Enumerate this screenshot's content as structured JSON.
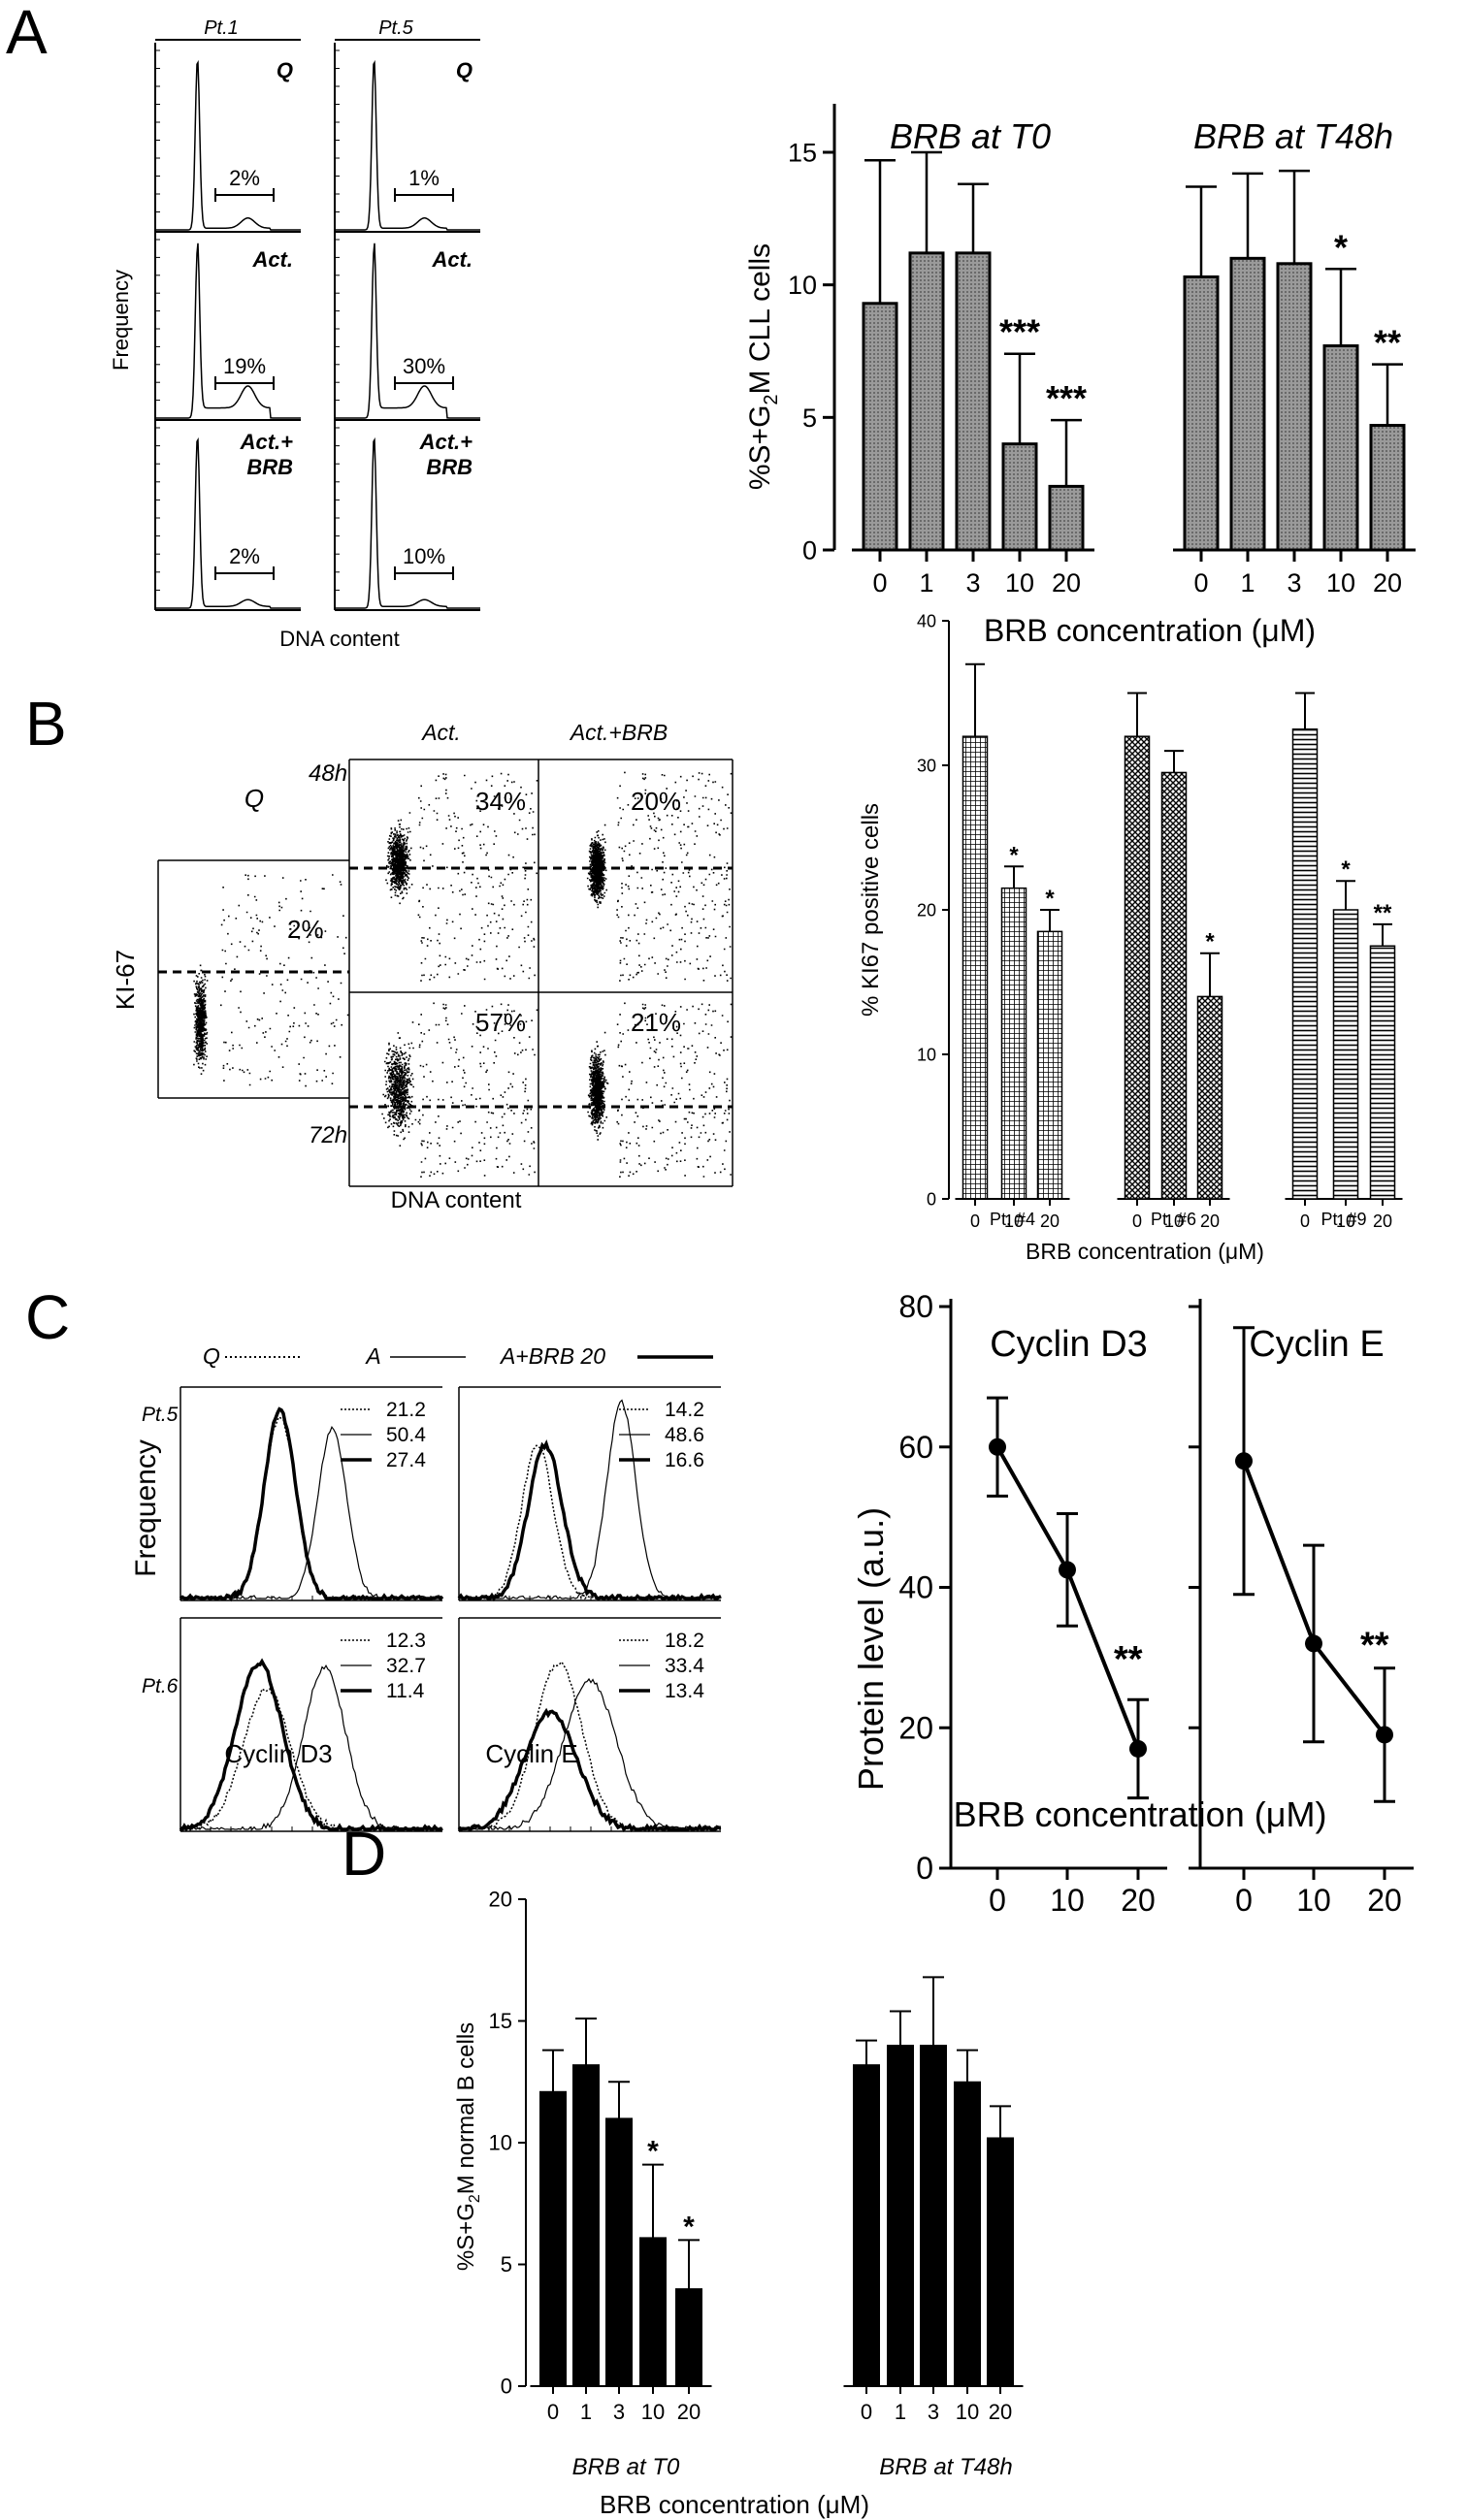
{
  "panels": {
    "A": {
      "letter": "A",
      "flow": {
        "columns": [
          "Pt.1",
          "Pt.5"
        ],
        "rows": [
          {
            "label": "Q",
            "pcts": [
              "2%",
              "1%"
            ]
          },
          {
            "label": "Act.",
            "pcts": [
              "19%",
              "30%"
            ]
          },
          {
            "label_lines": [
              "Act.+",
              "BRB"
            ],
            "pcts": [
              "2%",
              "10%"
            ]
          }
        ],
        "ylabel": "Frequency",
        "xlabel": "DNA content"
      }
    },
    "B": {
      "letter": "B",
      "flow": {
        "q_label": "Q",
        "q_pct": "2%",
        "col_titles": [
          "Act.",
          "Act.+BRB"
        ],
        "time_labels": [
          "48h",
          "72h"
        ],
        "pcts": [
          "34%",
          "20%",
          "57%",
          "21%"
        ],
        "ylabel": "KI-67",
        "xlabel": "DNA content"
      }
    },
    "C": {
      "letter": "C",
      "legend": [
        "Q",
        "A",
        "A+BRB 20"
      ],
      "rows": [
        "Pt.5",
        "Pt.6"
      ],
      "ylabel": "Frequency",
      "xlabels": [
        "Cyclin D3",
        "Cyclin E"
      ],
      "values": [
        [
          "21.2",
          "50.4",
          "27.4"
        ],
        [
          "14.2",
          "48.6",
          "16.6"
        ],
        [
          "12.3",
          "32.7",
          "11.4"
        ],
        [
          "18.2",
          "33.4",
          "13.4"
        ]
      ]
    },
    "D": {
      "letter": "D"
    }
  },
  "chart_data": [
    {
      "panel": "A",
      "type": "bar",
      "ylabel": "%S+G2M CLL cells",
      "xlabel": "BRB concentration (μM)",
      "ylim": [
        0,
        15
      ],
      "yticks": [
        0,
        5,
        10,
        15
      ],
      "groups": [
        {
          "label": "BRB at T0",
          "categories": [
            "0",
            "1",
            "3",
            "10",
            "20"
          ],
          "values": [
            9.3,
            11.2,
            11.2,
            4.0,
            2.4
          ],
          "errors": [
            5.4,
            3.8,
            2.6,
            3.4,
            2.5
          ],
          "sig": [
            "",
            "",
            "",
            "***",
            "***"
          ]
        },
        {
          "label": "BRB at T48h",
          "categories": [
            "0",
            "1",
            "3",
            "10",
            "20"
          ],
          "values": [
            10.3,
            11.0,
            10.8,
            7.7,
            4.7
          ],
          "errors": [
            3.4,
            3.2,
            3.5,
            2.9,
            2.3
          ],
          "sig": [
            "",
            "",
            "",
            "*",
            "**"
          ]
        }
      ],
      "color": "#8a8a8a"
    },
    {
      "panel": "B",
      "type": "bar",
      "ylabel": "% KI67 positive cells",
      "xlabel": "BRB concentration (μM)",
      "ylim": [
        0,
        40
      ],
      "yticks": [
        0,
        10,
        20,
        30,
        40
      ],
      "groups": [
        {
          "label": "Pt. #4",
          "categories": [
            "0",
            "10",
            "20"
          ],
          "values": [
            32,
            21.5,
            18.5
          ],
          "errors": [
            5,
            1.5,
            1.5
          ],
          "sig": [
            "",
            "*",
            "*"
          ],
          "pattern": "grid"
        },
        {
          "label": "Pt. #6",
          "categories": [
            "0",
            "10",
            "20"
          ],
          "values": [
            32,
            29.5,
            14
          ],
          "errors": [
            3,
            1.5,
            3
          ],
          "sig": [
            "",
            "",
            "*"
          ],
          "pattern": "cross"
        },
        {
          "label": "Pt. #9",
          "categories": [
            "0",
            "10",
            "20"
          ],
          "values": [
            32.5,
            20,
            17.5
          ],
          "errors": [
            2.5,
            2,
            1.5
          ],
          "sig": [
            "",
            "*",
            "**"
          ],
          "pattern": "hlines"
        }
      ]
    },
    {
      "panel": "C",
      "type": "line",
      "ylabel": "Protein level (a.u.)",
      "xlabel": "BRB concentration (μM)",
      "ylim": [
        0,
        80
      ],
      "yticks": [
        0,
        20,
        40,
        60,
        80
      ],
      "x": [
        0,
        10,
        20
      ],
      "series": [
        {
          "name": "Cyclin D3",
          "values": [
            60,
            42.5,
            17
          ],
          "errors": [
            7,
            8,
            7
          ],
          "sig": "**"
        },
        {
          "name": "Cyclin E",
          "values": [
            58,
            32,
            19
          ],
          "errors": [
            19,
            14,
            9.5
          ],
          "sig": "**"
        }
      ]
    },
    {
      "panel": "D",
      "type": "bar",
      "ylabel": "%S+G2M normal B cells",
      "xlabel": "BRB concentration (μM)",
      "ylim": [
        0,
        20
      ],
      "yticks": [
        0,
        5,
        10,
        15,
        20
      ],
      "groups": [
        {
          "label": "BRB at T0",
          "categories": [
            "0",
            "1",
            "3",
            "10",
            "20"
          ],
          "values": [
            12.1,
            13.2,
            11,
            6.1,
            4
          ],
          "errors": [
            1.7,
            1.9,
            1.5,
            3,
            2
          ],
          "sig": [
            "",
            "",
            "",
            "*",
            "*"
          ]
        },
        {
          "label": "BRB at T48h",
          "categories": [
            "0",
            "1",
            "3",
            "10",
            "20"
          ],
          "values": [
            13.2,
            14,
            14,
            12.5,
            10.2
          ],
          "errors": [
            1,
            1.4,
            2.8,
            1.3,
            1.3
          ],
          "sig": [
            "",
            "",
            "",
            "",
            ""
          ]
        }
      ],
      "color": "#000000"
    }
  ]
}
